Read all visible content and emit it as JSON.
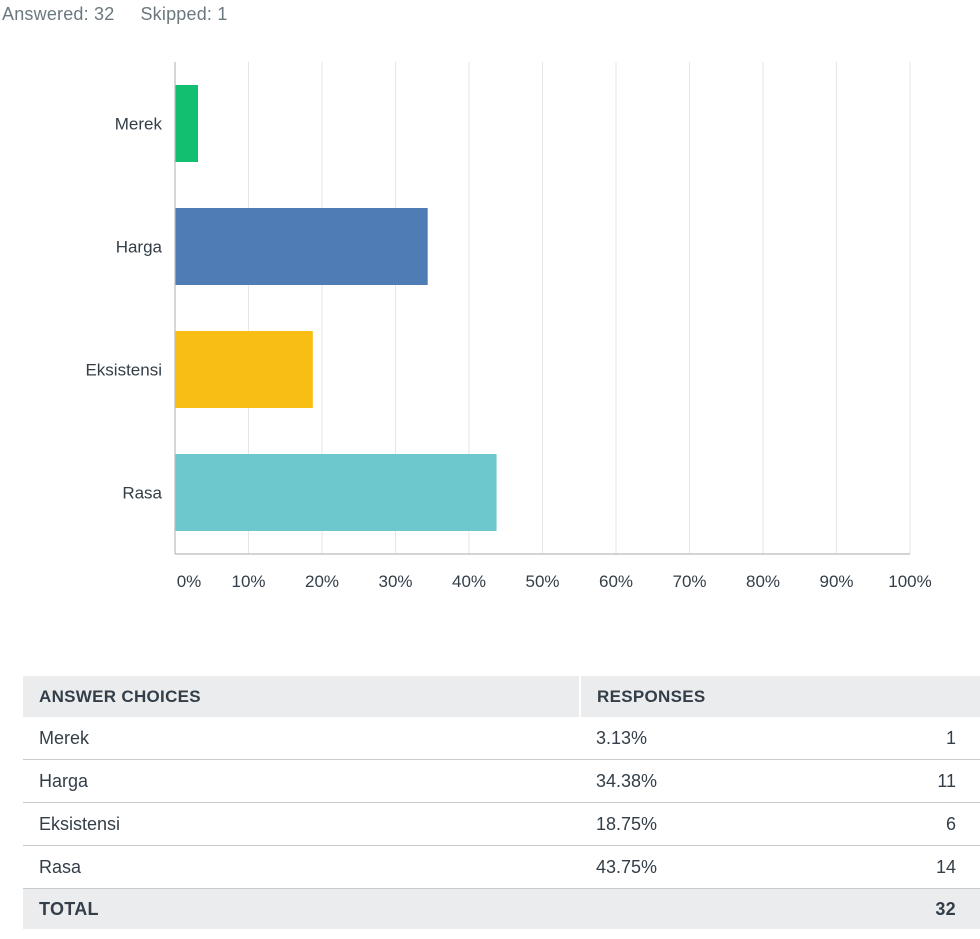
{
  "summary": {
    "answered": "Answered: 32",
    "skipped": "Skipped: 1"
  },
  "chart_data": {
    "type": "bar",
    "orientation": "horizontal",
    "categories": [
      "Merek",
      "Harga",
      "Eksistensi",
      "Rasa"
    ],
    "values": [
      3.13,
      34.38,
      18.75,
      43.75
    ],
    "colors": [
      "#12bf70",
      "#507cb6",
      "#f9be14",
      "#6cc8cc"
    ],
    "xlim": [
      0,
      100
    ],
    "xticks": [
      "0%",
      "10%",
      "20%",
      "30%",
      "40%",
      "50%",
      "60%",
      "70%",
      "80%",
      "90%",
      "100%"
    ],
    "grid": true,
    "title": "",
    "xlabel": "",
    "ylabel": ""
  },
  "table": {
    "headers": {
      "choice": "ANSWER CHOICES",
      "responses": "RESPONSES"
    },
    "rows": [
      {
        "choice": "Merek",
        "percent": "3.13%",
        "count": "1"
      },
      {
        "choice": "Harga",
        "percent": "34.38%",
        "count": "11"
      },
      {
        "choice": "Eksistensi",
        "percent": "18.75%",
        "count": "6"
      },
      {
        "choice": "Rasa",
        "percent": "43.75%",
        "count": "14"
      }
    ],
    "total": {
      "label": "TOTAL",
      "count": "32"
    }
  }
}
